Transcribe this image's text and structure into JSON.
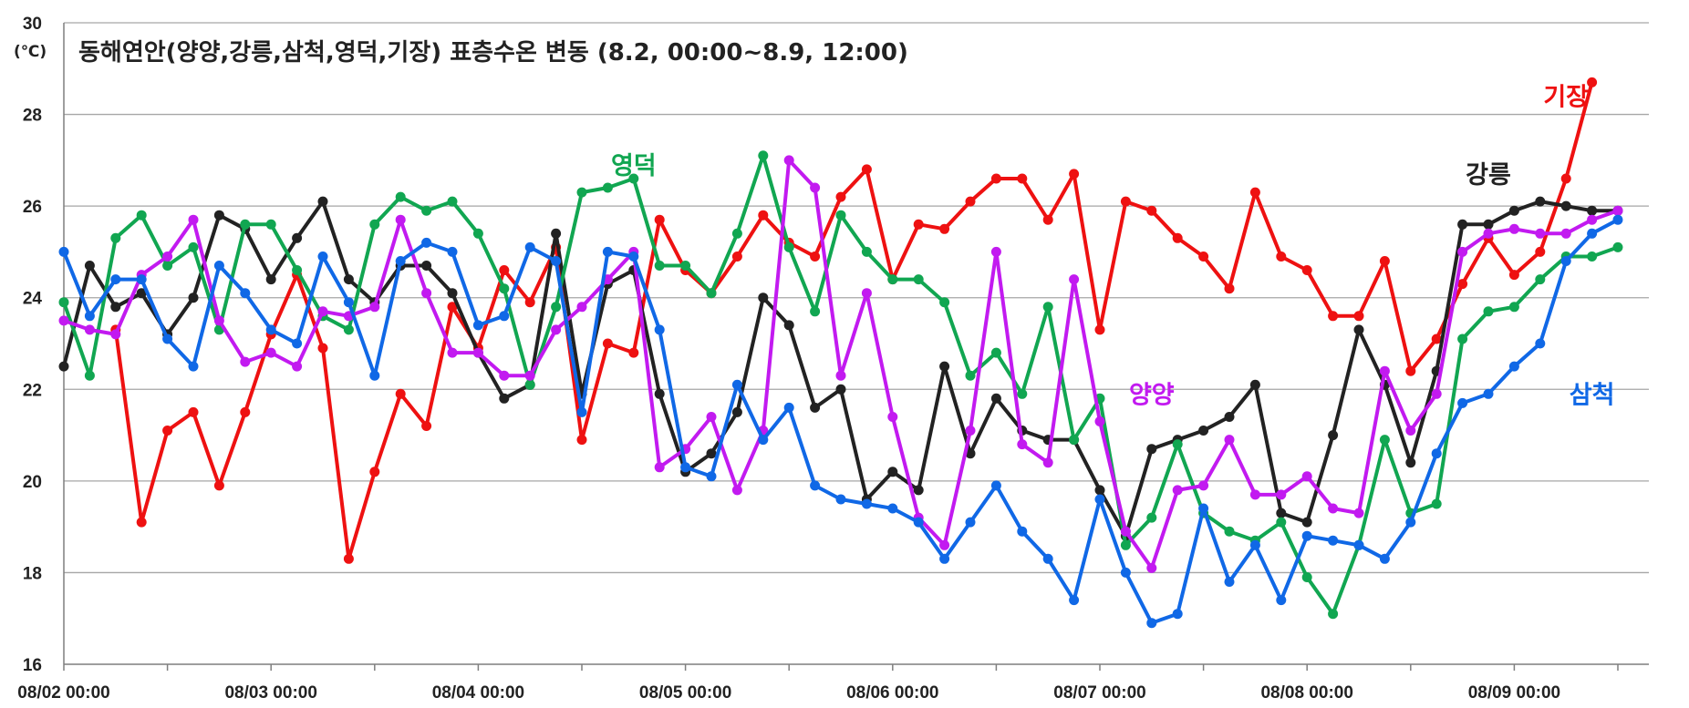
{
  "chart_data": {
    "type": "line",
    "title": "동해연안(양양,강릉,삼척,영덕,기장)  표층수온 변동 (8.2, 00:00~8.9, 12:00)",
    "ylabel_unit": "(℃)",
    "ylim": [
      16,
      30
    ],
    "yticks": [
      16,
      18,
      20,
      22,
      24,
      26,
      28,
      30
    ],
    "x_start": "08/02 00:00",
    "x_step_hours": 3,
    "xticks": [
      "08/02 00:00",
      "08/03 00:00",
      "08/04 00:00",
      "08/05 00:00",
      "08/06 00:00",
      "08/07 00:00",
      "08/08 00:00",
      "08/09 00:00"
    ],
    "grid": true,
    "series": [
      {
        "name": "기장",
        "color": "#ee1111",
        "start_index": 2,
        "values": [
          23.3,
          19.1,
          21.1,
          21.5,
          19.9,
          21.5,
          23.2,
          24.5,
          22.9,
          18.3,
          20.2,
          21.9,
          21.2,
          23.8,
          22.9,
          24.6,
          23.9,
          25.1,
          20.9,
          23.0,
          22.8,
          25.7,
          24.6,
          24.1,
          24.9,
          25.8,
          25.2,
          24.9,
          26.2,
          26.8,
          24.4,
          25.6,
          25.5,
          26.1,
          26.6,
          26.6,
          25.7,
          26.7,
          23.3,
          26.1,
          25.9,
          25.3,
          24.9,
          24.2,
          26.3,
          24.9,
          24.6,
          23.6,
          23.6,
          24.8,
          22.4,
          23.1,
          24.3,
          25.3,
          24.5,
          25.0,
          26.6,
          28.7
        ]
      },
      {
        "name": "강릉",
        "color": "#222222",
        "start_index": 0,
        "values": [
          22.5,
          24.7,
          23.8,
          24.1,
          23.2,
          24.0,
          25.8,
          25.5,
          24.4,
          25.3,
          26.1,
          24.4,
          23.9,
          24.7,
          24.7,
          24.1,
          22.8,
          21.8,
          22.1,
          25.4,
          21.9,
          24.3,
          24.6,
          21.9,
          20.2,
          20.6,
          21.5,
          24.0,
          23.4,
          21.6,
          22.0,
          19.6,
          20.2,
          19.8,
          22.5,
          20.6,
          21.8,
          21.1,
          20.9,
          20.9,
          19.8,
          18.8,
          20.7,
          20.9,
          21.1,
          21.4,
          22.1,
          19.3,
          19.1,
          21.0,
          23.3,
          22.1,
          20.4,
          22.4,
          25.6,
          25.6,
          25.9,
          26.1,
          26.0,
          25.9,
          25.9
        ]
      },
      {
        "name": "영덕",
        "color": "#11a651",
        "start_index": 0,
        "values": [
          23.9,
          22.3,
          25.3,
          25.8,
          24.7,
          25.1,
          23.3,
          25.6,
          25.6,
          24.6,
          23.6,
          23.3,
          25.6,
          26.2,
          25.9,
          26.1,
          25.4,
          24.2,
          22.1,
          23.8,
          26.3,
          26.4,
          26.6,
          24.7,
          24.7,
          24.1,
          25.4,
          27.1,
          25.1,
          23.7,
          25.8,
          25.0,
          24.4,
          24.4,
          23.9,
          22.3,
          22.8,
          21.9,
          23.8,
          20.9,
          21.8,
          18.6,
          19.2,
          20.8,
          19.3,
          18.9,
          18.7,
          19.1,
          17.9,
          17.1,
          18.6,
          20.9,
          19.3,
          19.5,
          23.1,
          23.7,
          23.8,
          24.4,
          24.9,
          24.9,
          25.1
        ]
      },
      {
        "name": "양양",
        "color": "#c21af0",
        "start_index": 0,
        "values": [
          23.5,
          23.3,
          23.2,
          24.5,
          24.9,
          25.7,
          23.5,
          22.6,
          22.8,
          22.5,
          23.7,
          23.6,
          23.8,
          25.7,
          24.1,
          22.8,
          22.8,
          22.3,
          22.3,
          23.3,
          23.8,
          24.4,
          25.0,
          20.3,
          20.7,
          21.4,
          19.8,
          21.1,
          27.0,
          26.4,
          22.3,
          24.1,
          21.4,
          19.2,
          18.6,
          21.1,
          25.0,
          20.8,
          20.4,
          24.4,
          21.3,
          18.9,
          18.1,
          19.8,
          19.9,
          20.9,
          19.7,
          19.7,
          20.1,
          19.4,
          19.3,
          22.4,
          21.1,
          21.9,
          25.0,
          25.4,
          25.5,
          25.4,
          25.4,
          25.7,
          25.9
        ]
      },
      {
        "name": "삼척",
        "color": "#1068e6",
        "start_index": 0,
        "values": [
          25.0,
          23.6,
          24.4,
          24.4,
          23.1,
          22.5,
          24.7,
          24.1,
          23.3,
          23.0,
          24.9,
          23.9,
          22.3,
          24.8,
          25.2,
          25.0,
          23.4,
          23.6,
          25.1,
          24.8,
          21.5,
          25.0,
          24.9,
          23.3,
          20.3,
          20.1,
          22.1,
          20.9,
          21.6,
          19.9,
          19.6,
          19.5,
          19.4,
          19.1,
          18.3,
          19.1,
          19.9,
          18.9,
          18.3,
          17.4,
          19.6,
          18.0,
          16.9,
          17.1,
          19.4,
          17.8,
          18.6,
          17.4,
          18.8,
          18.7,
          18.6,
          18.3,
          19.1,
          20.6,
          21.7,
          21.9,
          22.5,
          23.0,
          24.8,
          25.4,
          25.7
        ]
      }
    ],
    "series_labels": [
      {
        "name": "영덕",
        "text": "영덕",
        "color": "#11a651",
        "anchor_index": 22,
        "anchor_value": 26.7
      },
      {
        "name": "기장",
        "text": "기장",
        "color": "#ee1111",
        "anchor_index": 58,
        "anchor_value": 28.2
      },
      {
        "name": "강릉",
        "text": "강릉",
        "color": "#222222",
        "anchor_index": 55,
        "anchor_value": 26.5
      },
      {
        "name": "양양",
        "text": "양양",
        "color": "#c21af0",
        "anchor_index": 42,
        "anchor_value": 21.7
      },
      {
        "name": "삼척",
        "text": "삼척",
        "color": "#1068e6",
        "anchor_index": 59,
        "anchor_value": 21.7
      }
    ]
  }
}
